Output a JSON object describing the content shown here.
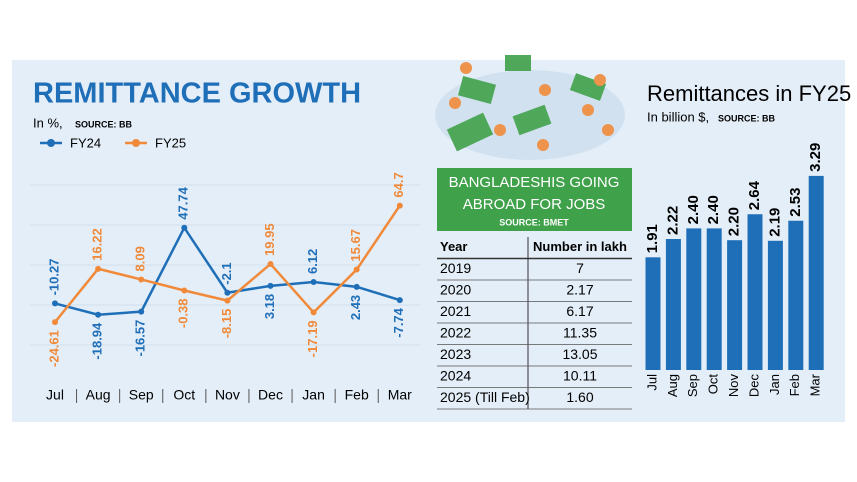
{
  "chart_data": [
    {
      "type": "line",
      "title": "REMITTANCE GROWTH",
      "subtitle": "In %,",
      "source": "SOURCE: BB",
      "categories": [
        "Jul",
        "Aug",
        "Sep",
        "Oct",
        "Nov",
        "Dec",
        "Jan",
        "Feb",
        "Mar"
      ],
      "series": [
        {
          "name": "FY24",
          "color": "#1f6fb8",
          "values": [
            -10.27,
            -18.94,
            -16.57,
            47.74,
            -2.1,
            3.18,
            6.12,
            2.43,
            -7.74
          ]
        },
        {
          "name": "FY25",
          "color": "#f08a3a",
          "values": [
            -24.61,
            16.22,
            8.09,
            -0.38,
            -8.15,
            19.95,
            -17.19,
            15.67,
            64.7
          ]
        }
      ]
    },
    {
      "type": "bar",
      "title": "Remittances in FY25",
      "subtitle": "In billion $,",
      "source": "SOURCE: BB",
      "categories": [
        "Jul",
        "Aug",
        "Sep",
        "Oct",
        "Nov",
        "Dec",
        "Jan",
        "Feb",
        "Mar"
      ],
      "values": [
        1.91,
        2.22,
        2.4,
        2.4,
        2.2,
        2.64,
        2.19,
        2.53,
        3.29
      ],
      "value_labels": [
        "1.91",
        "2.22",
        "2.40",
        "2.40",
        "2.20",
        "2.64",
        "2.19",
        "2.53",
        "3.29"
      ],
      "color": "#1f6fb8"
    }
  ],
  "jobs": {
    "title_line1": "BANGLADESHIS GOING",
    "title_line2": "ABROAD FOR JOBS",
    "source": "SOURCE: BMET",
    "table": {
      "header": [
        "Year",
        "Number in lakh"
      ],
      "rows": [
        [
          "2019",
          "7"
        ],
        [
          "2020",
          "2.17"
        ],
        [
          "2021",
          "6.17"
        ],
        [
          "2022",
          "11.35"
        ],
        [
          "2023",
          "13.05"
        ],
        [
          "2024",
          "10.11"
        ],
        [
          "2025 (Till Feb)",
          "1.60"
        ]
      ]
    }
  }
}
